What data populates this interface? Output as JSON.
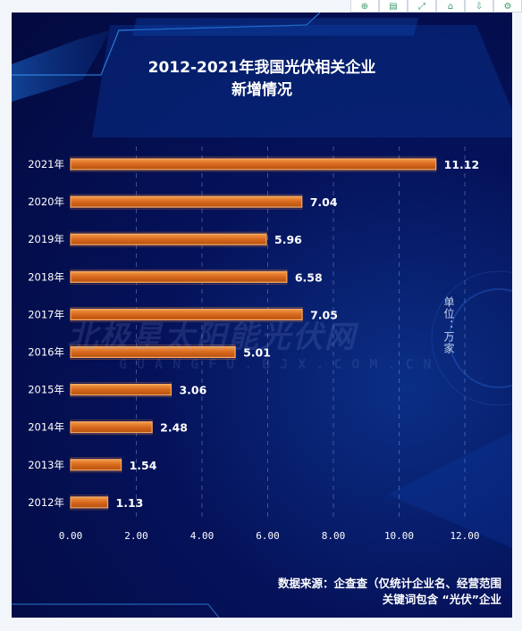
{
  "toolbar": {
    "icons": [
      "zoom-icon",
      "document-icon",
      "expand-icon",
      "home-icon",
      "download-icon",
      "gear-icon"
    ]
  },
  "title_line1": "2012-2021年我国光伏相关企业",
  "title_line2": "新增情况",
  "unit_label": "单位：万家",
  "source_line1": "数据来源：企查查（仅统计企业名、经营范围",
  "source_line2": "关键词包含 “光伏”企业",
  "watermark": {
    "main": "北极星太阳能光伏网",
    "sub": "GUANGFU.BJX.COM.CN"
  },
  "colors": {
    "bar_fill": "#e07a26",
    "bar_border": "#ffb066",
    "background": "#05125a",
    "text": "#ffffff"
  },
  "chart_data": {
    "type": "bar",
    "orientation": "horizontal",
    "categories": [
      "2021年",
      "2020年",
      "2019年",
      "2018年",
      "2017年",
      "2016年",
      "2015年",
      "2014年",
      "2013年",
      "2012年"
    ],
    "values": [
      11.12,
      7.04,
      5.96,
      6.58,
      7.05,
      5.01,
      3.06,
      2.48,
      1.54,
      1.13
    ],
    "data_labels": [
      "11.12",
      "7.04",
      "5.96",
      "6.58",
      "7.05",
      "5.01",
      "3.06",
      "2.48",
      "1.54",
      "1.13"
    ],
    "x_ticks": [
      "0.00",
      "2.00",
      "4.00",
      "6.00",
      "8.00",
      "10.00",
      "12.00"
    ],
    "xlim": [
      0,
      12
    ],
    "grid": "vertical dashed"
  }
}
